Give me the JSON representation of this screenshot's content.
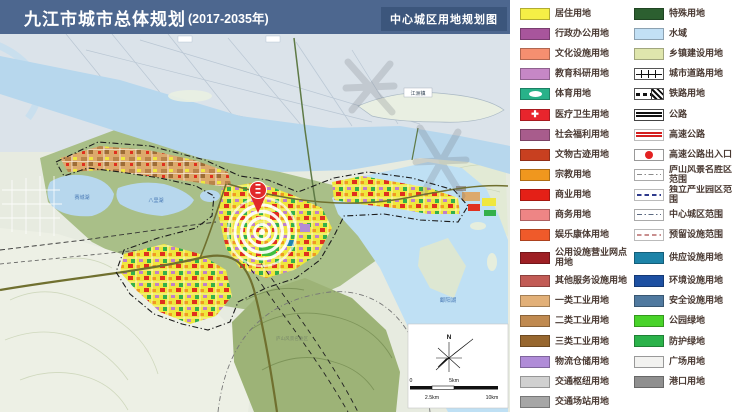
{
  "title_bar": {
    "title": "九江市城市总体规划",
    "suffix": "(2017-2035年)",
    "subtitle": "中心城区用地规划图"
  },
  "map": {
    "labels": {
      "island": "江洲镇",
      "lake_west": "赛城湖",
      "lake_center": "八里湖",
      "lake_east": "鄱阳湖",
      "scenic": "庐山风景名胜区"
    },
    "scale": {
      "north": "N",
      "zero": "0",
      "five": "5km",
      "two_five": "2.5km",
      "ten": "10km"
    }
  },
  "colors": {
    "titlebar_bg": "#4d678f",
    "subtitle_bg": "#3c567c",
    "water": "#b7d7ed",
    "legend_text": "#4a3a33"
  },
  "legend": {
    "left": [
      {
        "label": "居住用地",
        "type": "fill",
        "name": "residential",
        "color": "#f5ef46"
      },
      {
        "label": "行政办公用地",
        "type": "fill",
        "name": "administrative-office",
        "color": "#a8559c"
      },
      {
        "label": "文化设施用地",
        "type": "fill",
        "name": "cultural-facilities",
        "color": "#f58f70"
      },
      {
        "label": "教育科研用地",
        "type": "fill",
        "name": "education-research",
        "color": "#c687c6"
      },
      {
        "label": "体育用地",
        "type": "sports",
        "name": "sports",
        "color": "#28b289"
      },
      {
        "label": "医疗卫生用地",
        "type": "medical",
        "name": "medical-health",
        "color": "#e8252d"
      },
      {
        "label": "社会福利用地",
        "type": "fill",
        "name": "social-welfare",
        "color": "#a85c8c"
      },
      {
        "label": "文物古迹用地",
        "type": "fill",
        "name": "heritage-sites",
        "color": "#c84020"
      },
      {
        "label": "宗教用地",
        "type": "fill",
        "name": "religious",
        "color": "#f0971e"
      },
      {
        "label": "商业用地",
        "type": "fill",
        "name": "commercial",
        "color": "#e42017"
      },
      {
        "label": "商务用地",
        "type": "fill",
        "name": "business",
        "color": "#ee8585"
      },
      {
        "label": "娱乐康体用地",
        "type": "fill",
        "name": "entertainment-recreation",
        "color": "#ef5a2a"
      },
      {
        "label": "公用设施营业网点用地",
        "type": "fill",
        "name": "utility-outlets",
        "color": "#9e1f24"
      },
      {
        "label": "其他服务设施用地",
        "type": "fill",
        "name": "other-services",
        "color": "#c25b55"
      },
      {
        "label": "一类工业用地",
        "type": "fill",
        "name": "industrial-class1",
        "color": "#e2b078"
      },
      {
        "label": "二类工业用地",
        "type": "fill",
        "name": "industrial-class2",
        "color": "#c08a50"
      },
      {
        "label": "三类工业用地",
        "type": "fill",
        "name": "industrial-class3",
        "color": "#97672f"
      },
      {
        "label": "物流仓储用地",
        "type": "fill",
        "name": "logistics-warehouse",
        "color": "#b08cd8"
      },
      {
        "label": "交通枢纽用地",
        "type": "fill",
        "name": "transport-hub",
        "color": "#d0d0d0"
      },
      {
        "label": "交通场站用地",
        "type": "fill",
        "name": "transport-station",
        "color": "#a6a6a6"
      }
    ],
    "right": [
      {
        "label": "特殊用地",
        "type": "fill",
        "name": "special-use",
        "color": "#2c5f30"
      },
      {
        "label": "水域",
        "type": "fill",
        "name": "water-area",
        "color": "#c2e0f5"
      },
      {
        "label": "乡镇建设用地",
        "type": "fill",
        "name": "township-construction",
        "color": "#dfe6ad"
      },
      {
        "label": "城市道路用地",
        "type": "road",
        "name": "urban-road"
      },
      {
        "label": "铁路用地",
        "type": "rail",
        "name": "railway-land"
      },
      {
        "label": "公路",
        "type": "highway",
        "name": "highway"
      },
      {
        "label": "高速公路",
        "type": "expwy",
        "name": "expressway",
        "color": "#d42020"
      },
      {
        "label": "高速公路出入口",
        "type": "dot",
        "name": "expressway-access",
        "color": "#e32222"
      },
      {
        "label": "庐山风景名胜区范围",
        "type": "dashdot",
        "name": "lushan-scenic-boundary",
        "color": "#8a8a8a"
      },
      {
        "label": "独立产业园区范围",
        "type": "dash",
        "name": "industrial-park-boundary",
        "color": "#2e3a8c"
      },
      {
        "label": "中心城区范围",
        "type": "dashdot",
        "name": "central-city-boundary",
        "color": "#5b6880"
      },
      {
        "label": "预留设施范围",
        "type": "dash",
        "name": "reserved-facility-boundary",
        "color": "#c98f8f"
      },
      {
        "label": "供应设施用地",
        "type": "fill",
        "name": "supply-facilities",
        "color": "#1d83a8"
      },
      {
        "label": "环境设施用地",
        "type": "fill",
        "name": "environmental-facilities",
        "color": "#1d50a2"
      },
      {
        "label": "安全设施用地",
        "type": "fill",
        "name": "safety-facilities",
        "color": "#50799f"
      },
      {
        "label": "公园绿地",
        "type": "fill",
        "name": "park-green",
        "color": "#49d32a"
      },
      {
        "label": "防护绿地",
        "type": "fill",
        "name": "protective-green",
        "color": "#2bb24a"
      },
      {
        "label": "广场用地",
        "type": "plain",
        "name": "square-land",
        "color": "#f2f2f0"
      },
      {
        "label": "港口用地",
        "type": "fill",
        "name": "port-land",
        "color": "#8f8f8f"
      }
    ]
  }
}
